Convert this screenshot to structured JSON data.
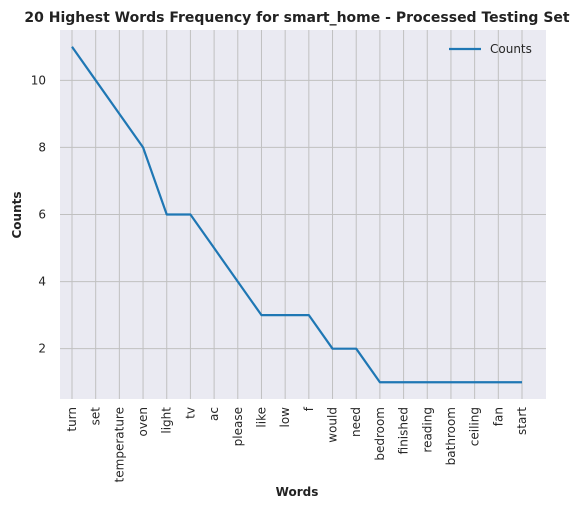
{
  "chart_data": {
    "type": "line",
    "title": "20 Highest Words Frequency for smart_home - Processed Testing Set",
    "xlabel": "Words",
    "ylabel": "Counts",
    "categories": [
      "turn",
      "set",
      "temperature",
      "oven",
      "light",
      "tv",
      "ac",
      "please",
      "like",
      "low",
      "f",
      "would",
      "need",
      "bedroom",
      "finished",
      "reading",
      "bathroom",
      "ceiling",
      "fan",
      "start"
    ],
    "series": [
      {
        "name": "Counts",
        "values": [
          11,
          10,
          9,
          8,
          6,
          6,
          5,
          4,
          3,
          3,
          3,
          2,
          2,
          1,
          1,
          1,
          1,
          1,
          1,
          1
        ]
      }
    ],
    "ylim": [
      0.5,
      11.5
    ],
    "yticks": [
      2,
      4,
      6,
      8,
      10
    ],
    "grid": true,
    "legend": "top-right",
    "colors": {
      "line": "#1f77b4",
      "background": "#eaeaf2",
      "grid": "#c0c0c0"
    }
  }
}
